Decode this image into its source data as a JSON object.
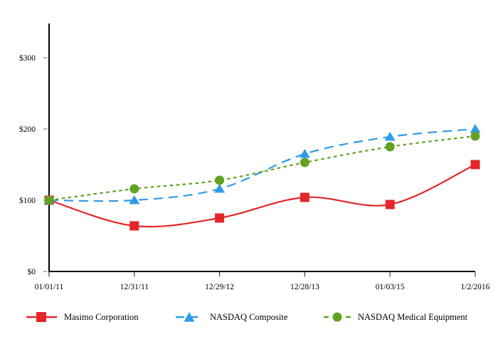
{
  "chart_data": {
    "type": "line",
    "title": "",
    "xlabel": "",
    "ylabel": "",
    "grid": false,
    "legend_position": "bottom",
    "categories": [
      "01/01/11",
      "12/31/11",
      "12/29/12",
      "12/28/13",
      "01/03/15",
      "1/2/2016"
    ],
    "series": [
      {
        "name": "Masimo Corporation",
        "color": "#e32628",
        "line_style": "solid",
        "marker": "square",
        "values": [
          100,
          64,
          75,
          104,
          94,
          150
        ]
      },
      {
        "name": "NASDAQ Composite",
        "color": "#2e9be8",
        "line_style": "long-dash",
        "marker": "triangle",
        "values": [
          100,
          100,
          116,
          165,
          189,
          200
        ]
      },
      {
        "name": "NASDAQ Medical Equipment",
        "color": "#60a222",
        "line_style": "short-dash",
        "marker": "circle",
        "values": [
          100,
          116,
          128,
          153,
          175,
          190
        ]
      }
    ],
    "y_ticks": [
      {
        "label": "$0",
        "value": 0
      },
      {
        "label": "$100",
        "value": 100
      },
      {
        "label": "$200",
        "value": 200
      },
      {
        "label": "$300",
        "value": 300
      }
    ],
    "ylim": [
      0,
      350
    ]
  }
}
